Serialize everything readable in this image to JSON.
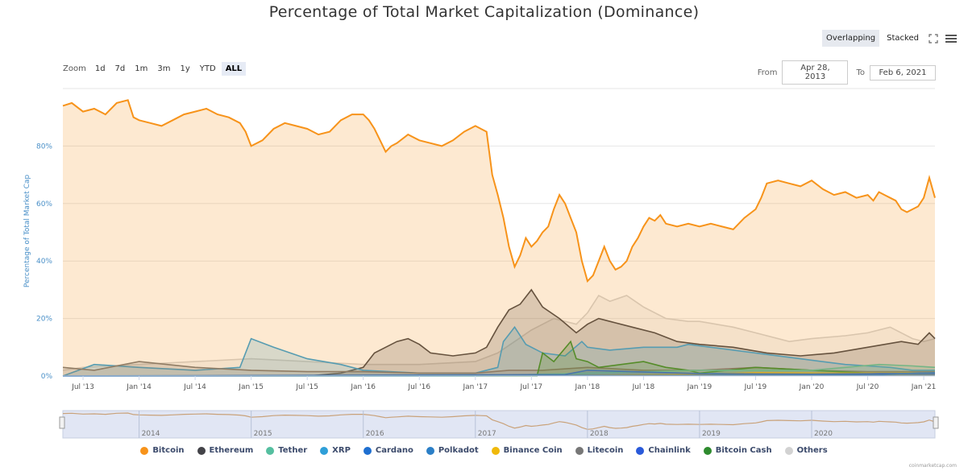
{
  "title": "Percentage of Total Market Capitalization (Dominance)",
  "toolbar": {
    "overlapping_label": "Overlapping",
    "stacked_label": "Stacked"
  },
  "zoom": {
    "label": "Zoom",
    "options": [
      "1d",
      "7d",
      "1m",
      "3m",
      "1y",
      "YTD",
      "ALL"
    ],
    "active": "ALL"
  },
  "range": {
    "from_label": "From",
    "from_value": "Apr 28, 2013",
    "to_label": "To",
    "to_value": "Feb 6, 2021"
  },
  "credit": "coinmarketcap.com",
  "chart_data": {
    "type": "area",
    "ylabel": "Percentage of Total Market Cap",
    "ylim": [
      0,
      100
    ],
    "yticks": [
      "0%",
      "20%",
      "40%",
      "60%",
      "80%"
    ],
    "xlim": [
      2013.32,
      2021.1
    ],
    "xticks": [
      {
        "t": 2013.5,
        "label": "Jul '13"
      },
      {
        "t": 2014.0,
        "label": "Jan '14"
      },
      {
        "t": 2014.5,
        "label": "Jul '14"
      },
      {
        "t": 2015.0,
        "label": "Jan '15"
      },
      {
        "t": 2015.5,
        "label": "Jul '15"
      },
      {
        "t": 2016.0,
        "label": "Jan '16"
      },
      {
        "t": 2016.5,
        "label": "Jul '16"
      },
      {
        "t": 2017.0,
        "label": "Jan '17"
      },
      {
        "t": 2017.5,
        "label": "Jul '17"
      },
      {
        "t": 2018.0,
        "label": "Jan '18"
      },
      {
        "t": 2018.5,
        "label": "Jul '18"
      },
      {
        "t": 2019.0,
        "label": "Jan '19"
      },
      {
        "t": 2019.5,
        "label": "Jul '19"
      },
      {
        "t": 2020.0,
        "label": "Jan '20"
      },
      {
        "t": 2020.5,
        "label": "Jul '20"
      },
      {
        "t": 2021.0,
        "label": "Jan '21"
      }
    ],
    "navigator_years": [
      "2014",
      "2015",
      "2016",
      "2017",
      "2018",
      "2019",
      "2020"
    ],
    "series": [
      {
        "name": "Others",
        "color": "#d2d2d2",
        "x": [
          2013.32,
          2013.5,
          2014.0,
          2014.5,
          2015.0,
          2015.5,
          2016.0,
          2016.5,
          2017.0,
          2017.2,
          2017.35,
          2017.5,
          2017.7,
          2017.9,
          2018.0,
          2018.1,
          2018.2,
          2018.35,
          2018.5,
          2018.7,
          2018.9,
          2019.0,
          2019.3,
          2019.5,
          2019.8,
          2020.0,
          2020.3,
          2020.5,
          2020.7,
          2020.9,
          2021.0,
          2021.1
        ],
        "y": [
          2,
          3,
          4,
          5,
          6,
          5,
          4,
          4,
          5,
          8,
          12,
          16,
          20,
          18,
          22,
          28,
          26,
          28,
          24,
          20,
          19,
          19,
          17,
          15,
          12,
          13,
          14,
          15,
          17,
          13,
          12,
          13
        ]
      },
      {
        "name": "Ethereum",
        "color": "#434348",
        "x": [
          2013.32,
          2015.5,
          2015.8,
          2016.0,
          2016.1,
          2016.2,
          2016.3,
          2016.4,
          2016.5,
          2016.6,
          2016.8,
          2017.0,
          2017.1,
          2017.2,
          2017.3,
          2017.4,
          2017.5,
          2017.6,
          2017.75,
          2017.9,
          2018.0,
          2018.1,
          2018.2,
          2018.4,
          2018.6,
          2018.8,
          2019.0,
          2019.3,
          2019.6,
          2019.9,
          2020.2,
          2020.5,
          2020.8,
          2020.95,
          2021.05,
          2021.1
        ],
        "y": [
          0,
          0,
          1,
          3,
          8,
          10,
          12,
          13,
          11,
          8,
          7,
          8,
          10,
          17,
          23,
          25,
          30,
          24,
          20,
          15,
          18,
          20,
          19,
          17,
          15,
          12,
          11,
          10,
          8,
          7,
          8,
          10,
          12,
          11,
          15,
          13
        ]
      },
      {
        "name": "XRP",
        "color": "#2f9fd8",
        "x": [
          2013.32,
          2013.6,
          2014.0,
          2014.5,
          2014.9,
          2015.0,
          2015.2,
          2015.5,
          2015.8,
          2016.0,
          2016.5,
          2017.0,
          2017.2,
          2017.25,
          2017.35,
          2017.45,
          2017.6,
          2017.8,
          2017.95,
          2018.0,
          2018.2,
          2018.5,
          2018.8,
          2018.9,
          2019.1,
          2019.5,
          2019.9,
          2020.3,
          2020.7,
          2020.9,
          2021.1
        ],
        "y": [
          0,
          4,
          3,
          2,
          3,
          13,
          10,
          6,
          4,
          2,
          1,
          1,
          3,
          12,
          17,
          11,
          8,
          7,
          12,
          10,
          9,
          10,
          10,
          11,
          10,
          8,
          6,
          4,
          3,
          2,
          2
        ]
      },
      {
        "name": "Litecoin",
        "color": "#777777",
        "x": [
          2013.32,
          2013.6,
          2014.0,
          2014.5,
          2015.0,
          2015.5,
          2016.0,
          2016.5,
          2017.0,
          2017.3,
          2017.6,
          2018.0,
          2018.5,
          2019.0,
          2019.5,
          2020.0,
          2020.5,
          2021.0,
          2021.1
        ],
        "y": [
          3,
          2,
          5,
          3,
          2,
          1.5,
          1.5,
          1,
          1,
          2,
          2,
          3,
          2,
          2,
          3,
          2,
          1.5,
          1.5,
          1.5
        ]
      },
      {
        "name": "Bitcoin Cash",
        "color": "#2e8b2e",
        "x": [
          2013.32,
          2017.55,
          2017.6,
          2017.7,
          2017.85,
          2017.9,
          2018.0,
          2018.1,
          2018.3,
          2018.5,
          2018.7,
          2018.9,
          2019.0,
          2019.5,
          2020.0,
          2020.5,
          2021.1
        ],
        "y": [
          0,
          0,
          8,
          5,
          12,
          6,
          5,
          3,
          4,
          5,
          3,
          2,
          1,
          3,
          2,
          1,
          1
        ]
      },
      {
        "name": "Tether",
        "color": "#55bfa0",
        "x": [
          2013.32,
          2017.0,
          2017.5,
          2018.0,
          2018.5,
          2019.0,
          2019.5,
          2020.0,
          2020.3,
          2020.6,
          2020.9,
          2021.1
        ],
        "y": [
          0,
          0,
          0.5,
          1,
          1.5,
          2,
          2,
          2,
          3,
          4,
          3.5,
          3
        ]
      },
      {
        "name": "Binance Coin",
        "color": "#f0b90b",
        "x": [
          2013.32,
          2018.0,
          2019.0,
          2019.5,
          2020.0,
          2021.0,
          2021.1
        ],
        "y": [
          0,
          0.2,
          0.6,
          1.1,
          1,
          1,
          1.2
        ]
      },
      {
        "name": "Chainlink",
        "color": "#2a5ada",
        "x": [
          2013.32,
          2019.5,
          2020.0,
          2020.6,
          2021.1
        ],
        "y": [
          0,
          0.1,
          0.2,
          0.8,
          0.9
        ]
      },
      {
        "name": "Cardano",
        "color": "#1f6fd0",
        "x": [
          2013.32,
          2017.8,
          2018.0,
          2019.0,
          2020.0,
          2021.0,
          2021.1
        ],
        "y": [
          0,
          0.5,
          2,
          0.8,
          0.7,
          0.9,
          1.1
        ]
      },
      {
        "name": "Polkadot",
        "color": "#2b7fc7",
        "x": [
          2013.32,
          2020.6,
          2020.8,
          2021.1
        ],
        "y": [
          0,
          0.3,
          0.8,
          1.2
        ]
      },
      {
        "name": "Bitcoin",
        "color": "#f7931a",
        "x": [
          2013.32,
          2013.4,
          2013.5,
          2013.6,
          2013.7,
          2013.8,
          2013.9,
          2013.95,
          2014.0,
          2014.1,
          2014.2,
          2014.3,
          2014.4,
          2014.5,
          2014.6,
          2014.7,
          2014.8,
          2014.9,
          2014.95,
          2015.0,
          2015.1,
          2015.2,
          2015.3,
          2015.4,
          2015.5,
          2015.6,
          2015.7,
          2015.8,
          2015.9,
          2016.0,
          2016.05,
          2016.1,
          2016.15,
          2016.2,
          2016.25,
          2016.3,
          2016.4,
          2016.5,
          2016.6,
          2016.7,
          2016.8,
          2016.9,
          2017.0,
          2017.05,
          2017.1,
          2017.15,
          2017.2,
          2017.25,
          2017.3,
          2017.35,
          2017.4,
          2017.45,
          2017.5,
          2017.55,
          2017.6,
          2017.65,
          2017.7,
          2017.75,
          2017.8,
          2017.85,
          2017.9,
          2017.95,
          2018.0,
          2018.05,
          2018.1,
          2018.15,
          2018.2,
          2018.25,
          2018.3,
          2018.35,
          2018.4,
          2018.45,
          2018.5,
          2018.55,
          2018.6,
          2018.65,
          2018.7,
          2018.8,
          2018.9,
          2019.0,
          2019.1,
          2019.2,
          2019.3,
          2019.4,
          2019.5,
          2019.55,
          2019.6,
          2019.7,
          2019.8,
          2019.9,
          2020.0,
          2020.1,
          2020.2,
          2020.3,
          2020.4,
          2020.5,
          2020.55,
          2020.6,
          2020.65,
          2020.7,
          2020.75,
          2020.8,
          2020.85,
          2020.9,
          2020.95,
          2021.0,
          2021.05,
          2021.1
        ],
        "y": [
          94,
          95,
          92,
          93,
          91,
          95,
          96,
          90,
          89,
          88,
          87,
          89,
          91,
          92,
          93,
          91,
          90,
          88,
          85,
          80,
          82,
          86,
          88,
          87,
          86,
          84,
          85,
          89,
          91,
          91,
          89,
          86,
          82,
          78,
          80,
          81,
          84,
          82,
          81,
          80,
          82,
          85,
          87,
          86,
          85,
          70,
          63,
          55,
          45,
          38,
          42,
          48,
          45,
          47,
          50,
          52,
          58,
          63,
          60,
          55,
          50,
          40,
          33,
          35,
          40,
          45,
          40,
          37,
          38,
          40,
          45,
          48,
          52,
          55,
          54,
          56,
          53,
          52,
          53,
          52,
          53,
          52,
          51,
          55,
          58,
          62,
          67,
          68,
          67,
          66,
          68,
          65,
          63,
          64,
          62,
          63,
          61,
          64,
          63,
          62,
          61,
          58,
          57,
          58,
          59,
          62,
          69,
          62
        ]
      }
    ]
  }
}
